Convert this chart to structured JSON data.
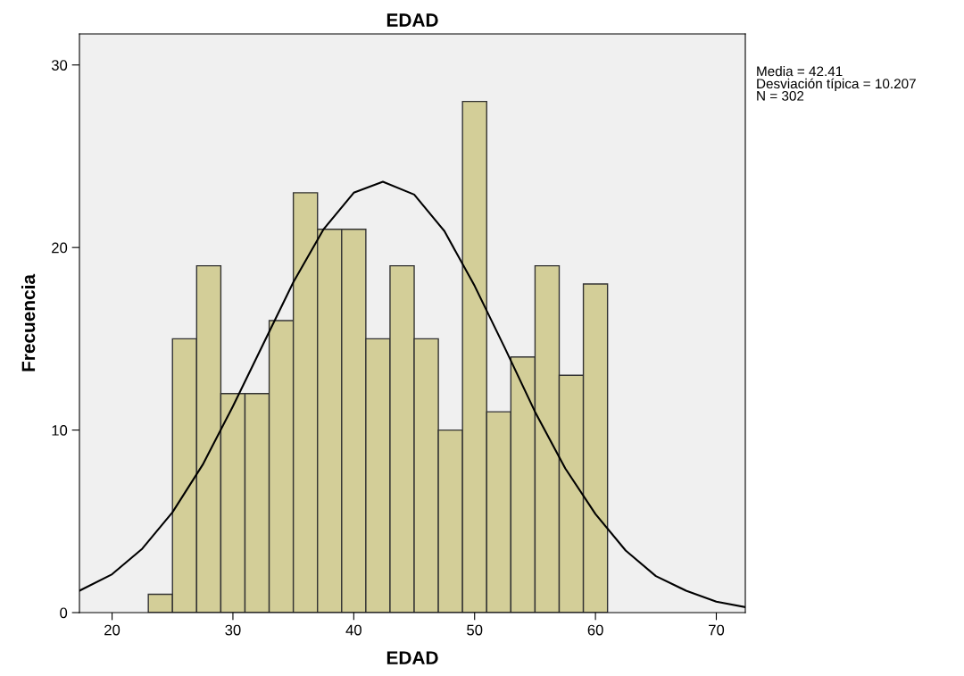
{
  "chart_data": {
    "type": "histogram",
    "title": "EDAD",
    "xlabel": "EDAD",
    "ylabel": "Frecuencia",
    "bins": [
      23,
      25,
      27,
      29,
      31,
      33,
      35,
      37,
      39,
      41,
      43,
      45,
      47,
      49,
      51,
      53,
      55,
      57,
      59,
      61
    ],
    "values": [
      1,
      15,
      19,
      12,
      12,
      16,
      23,
      21,
      21,
      15,
      19,
      15,
      10,
      28,
      11,
      14,
      19,
      13,
      18
    ],
    "color": "#d3ce98",
    "series": [
      {
        "type": "line",
        "color": "#000000",
        "x": [
          17.3,
          20,
          22.5,
          25,
          27.5,
          30,
          32.5,
          35,
          37.5,
          40,
          42.41,
          45,
          47.5,
          50,
          52.5,
          55,
          57.5,
          60,
          62.5,
          65,
          67.5,
          70,
          72.4
        ],
        "values": [
          1.2,
          2.1,
          3.5,
          5.5,
          8.1,
          11.3,
          14.7,
          18.1,
          21.0,
          23.0,
          23.6,
          22.9,
          20.9,
          17.9,
          14.5,
          11.0,
          7.9,
          5.4,
          3.4,
          2.0,
          1.2,
          0.6,
          0.3
        ]
      }
    ],
    "xlim": [
      17.3,
      72.4
    ],
    "xticks": [
      20,
      30,
      40,
      50,
      60,
      70
    ],
    "ylim": [
      0,
      31.7
    ],
    "yticks": [
      0,
      10,
      20,
      30
    ],
    "grid": false,
    "legend": false,
    "annotations": [
      "Media = 42.41",
      "Desviación típica = 10.207",
      "N = 302"
    ]
  }
}
